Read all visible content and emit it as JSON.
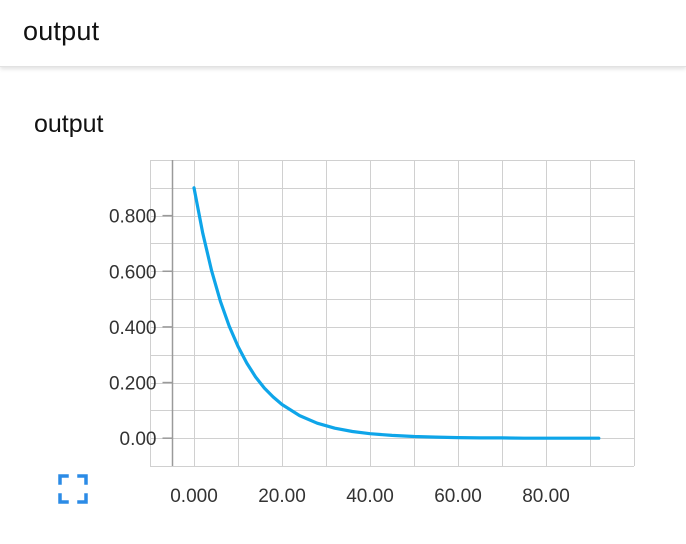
{
  "header": {
    "title": "output"
  },
  "card": {
    "title": "output"
  },
  "icons": {
    "expand": "fullscreen-expand-icon"
  },
  "colors": {
    "line": "#0ea5e9",
    "expand_icon": "#2b8be6",
    "grid": "#d0d0d0"
  },
  "chart_data": {
    "type": "line",
    "title": "output",
    "xlabel": "",
    "ylabel": "",
    "xlim": [
      -10,
      100
    ],
    "ylim": [
      -0.1,
      1.0
    ],
    "grid": true,
    "x_ticks": [
      0,
      20,
      40,
      60,
      80
    ],
    "x_tick_labels": [
      "0.000",
      "20.00",
      "40.00",
      "60.00",
      "80.00"
    ],
    "y_ticks": [
      0,
      0.2,
      0.4,
      0.6,
      0.8
    ],
    "y_tick_labels": [
      "0.00",
      "0.200",
      "0.400",
      "0.600",
      "0.800"
    ],
    "series": [
      {
        "x": [
          0,
          2,
          4,
          6,
          8,
          10,
          12,
          14,
          16,
          18,
          20,
          24,
          28,
          32,
          36,
          40,
          45,
          50,
          55,
          60,
          65,
          70,
          75,
          80,
          85,
          90,
          92
        ],
        "y": [
          0.9,
          0.736,
          0.602,
          0.492,
          0.403,
          0.33,
          0.27,
          0.22,
          0.18,
          0.148,
          0.121,
          0.081,
          0.054,
          0.036,
          0.024,
          0.016,
          0.01,
          0.006,
          0.004,
          0.002,
          0.001,
          0.001,
          0.0,
          0.0,
          0.0,
          0.0,
          0.0
        ]
      }
    ]
  }
}
